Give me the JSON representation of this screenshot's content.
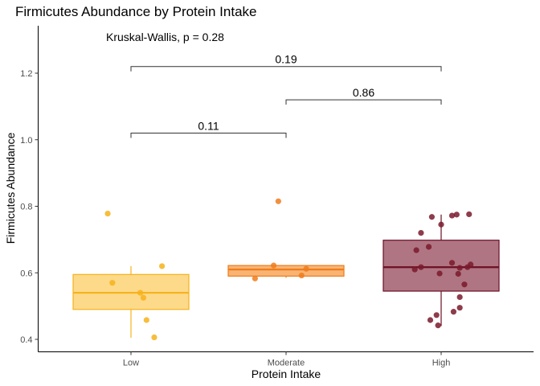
{
  "chart_data": {
    "type": "box",
    "title": "Firmicutes Abundance by Protein Intake",
    "xlabel": "Protein Intake",
    "ylabel": "Firmicutes Abundance",
    "categories": [
      "Low",
      "Moderate",
      "High"
    ],
    "ylim": [
      0.38,
      1.34
    ],
    "yticks": [
      0.4,
      0.6,
      0.8,
      1.0,
      1.2
    ],
    "ytick_labels": [
      "0.4",
      "0.6",
      "0.8",
      "1.0",
      "1.2"
    ],
    "grid": false,
    "legend": "none",
    "test_annotation": "Kruskal-Wallis, p = 0.28",
    "boxes": [
      {
        "category": "Low",
        "q1": 0.49,
        "median": 0.54,
        "q3": 0.595,
        "whisker_low": 0.405,
        "whisker_high": 0.62,
        "fill": "#fdd98a",
        "stroke": "#f6b21a"
      },
      {
        "category": "Moderate",
        "q1": 0.59,
        "median": 0.61,
        "q3": 0.622,
        "whisker_low": 0.585,
        "whisker_high": 0.622,
        "fill": "#f9b474",
        "stroke": "#ee7d1c"
      },
      {
        "category": "High",
        "q1": 0.545,
        "median": 0.617,
        "q3": 0.698,
        "whisker_low": 0.44,
        "whisker_high": 0.775,
        "fill": "#b07583",
        "stroke": "#6b0f24"
      }
    ],
    "points": [
      {
        "category": "Low",
        "color": "#f6b21a",
        "values": [
          {
            "offset": -0.15,
            "y": 0.778
          },
          {
            "offset": 0.2,
            "y": 0.62
          },
          {
            "offset": -0.12,
            "y": 0.57
          },
          {
            "offset": 0.06,
            "y": 0.54
          },
          {
            "offset": 0.08,
            "y": 0.525
          },
          {
            "offset": 0.1,
            "y": 0.458
          },
          {
            "offset": 0.15,
            "y": 0.406
          }
        ]
      },
      {
        "category": "Moderate",
        "color": "#ee7d1c",
        "values": [
          {
            "offset": -0.05,
            "y": 0.815
          },
          {
            "offset": -0.08,
            "y": 0.622
          },
          {
            "offset": 0.13,
            "y": 0.612
          },
          {
            "offset": 0.1,
            "y": 0.592
          },
          {
            "offset": -0.2,
            "y": 0.583
          }
        ]
      },
      {
        "category": "High",
        "color": "#7a1a2c",
        "values": [
          {
            "offset": 0.1,
            "y": 0.775
          },
          {
            "offset": 0.18,
            "y": 0.776
          },
          {
            "offset": -0.06,
            "y": 0.768
          },
          {
            "offset": 0.07,
            "y": 0.772
          },
          {
            "offset": 0.0,
            "y": 0.745
          },
          {
            "offset": -0.13,
            "y": 0.72
          },
          {
            "offset": -0.08,
            "y": 0.678
          },
          {
            "offset": -0.16,
            "y": 0.668
          },
          {
            "offset": 0.07,
            "y": 0.63
          },
          {
            "offset": 0.19,
            "y": 0.625
          },
          {
            "offset": 0.17,
            "y": 0.617
          },
          {
            "offset": -0.13,
            "y": 0.617
          },
          {
            "offset": -0.17,
            "y": 0.61
          },
          {
            "offset": 0.12,
            "y": 0.615
          },
          {
            "offset": -0.01,
            "y": 0.598
          },
          {
            "offset": 0.11,
            "y": 0.597
          },
          {
            "offset": 0.15,
            "y": 0.565
          },
          {
            "offset": 0.12,
            "y": 0.527
          },
          {
            "offset": 0.12,
            "y": 0.495
          },
          {
            "offset": 0.08,
            "y": 0.483
          },
          {
            "offset": -0.03,
            "y": 0.473
          },
          {
            "offset": -0.07,
            "y": 0.458
          },
          {
            "offset": -0.02,
            "y": 0.442
          }
        ]
      }
    ],
    "comparisons": [
      {
        "from": "Low",
        "to": "Moderate",
        "y": 1.02,
        "label": "0.11"
      },
      {
        "from": "Moderate",
        "to": "High",
        "y": 1.12,
        "label": "0.86"
      },
      {
        "from": "Low",
        "to": "High",
        "y": 1.22,
        "label": "0.19"
      }
    ]
  }
}
